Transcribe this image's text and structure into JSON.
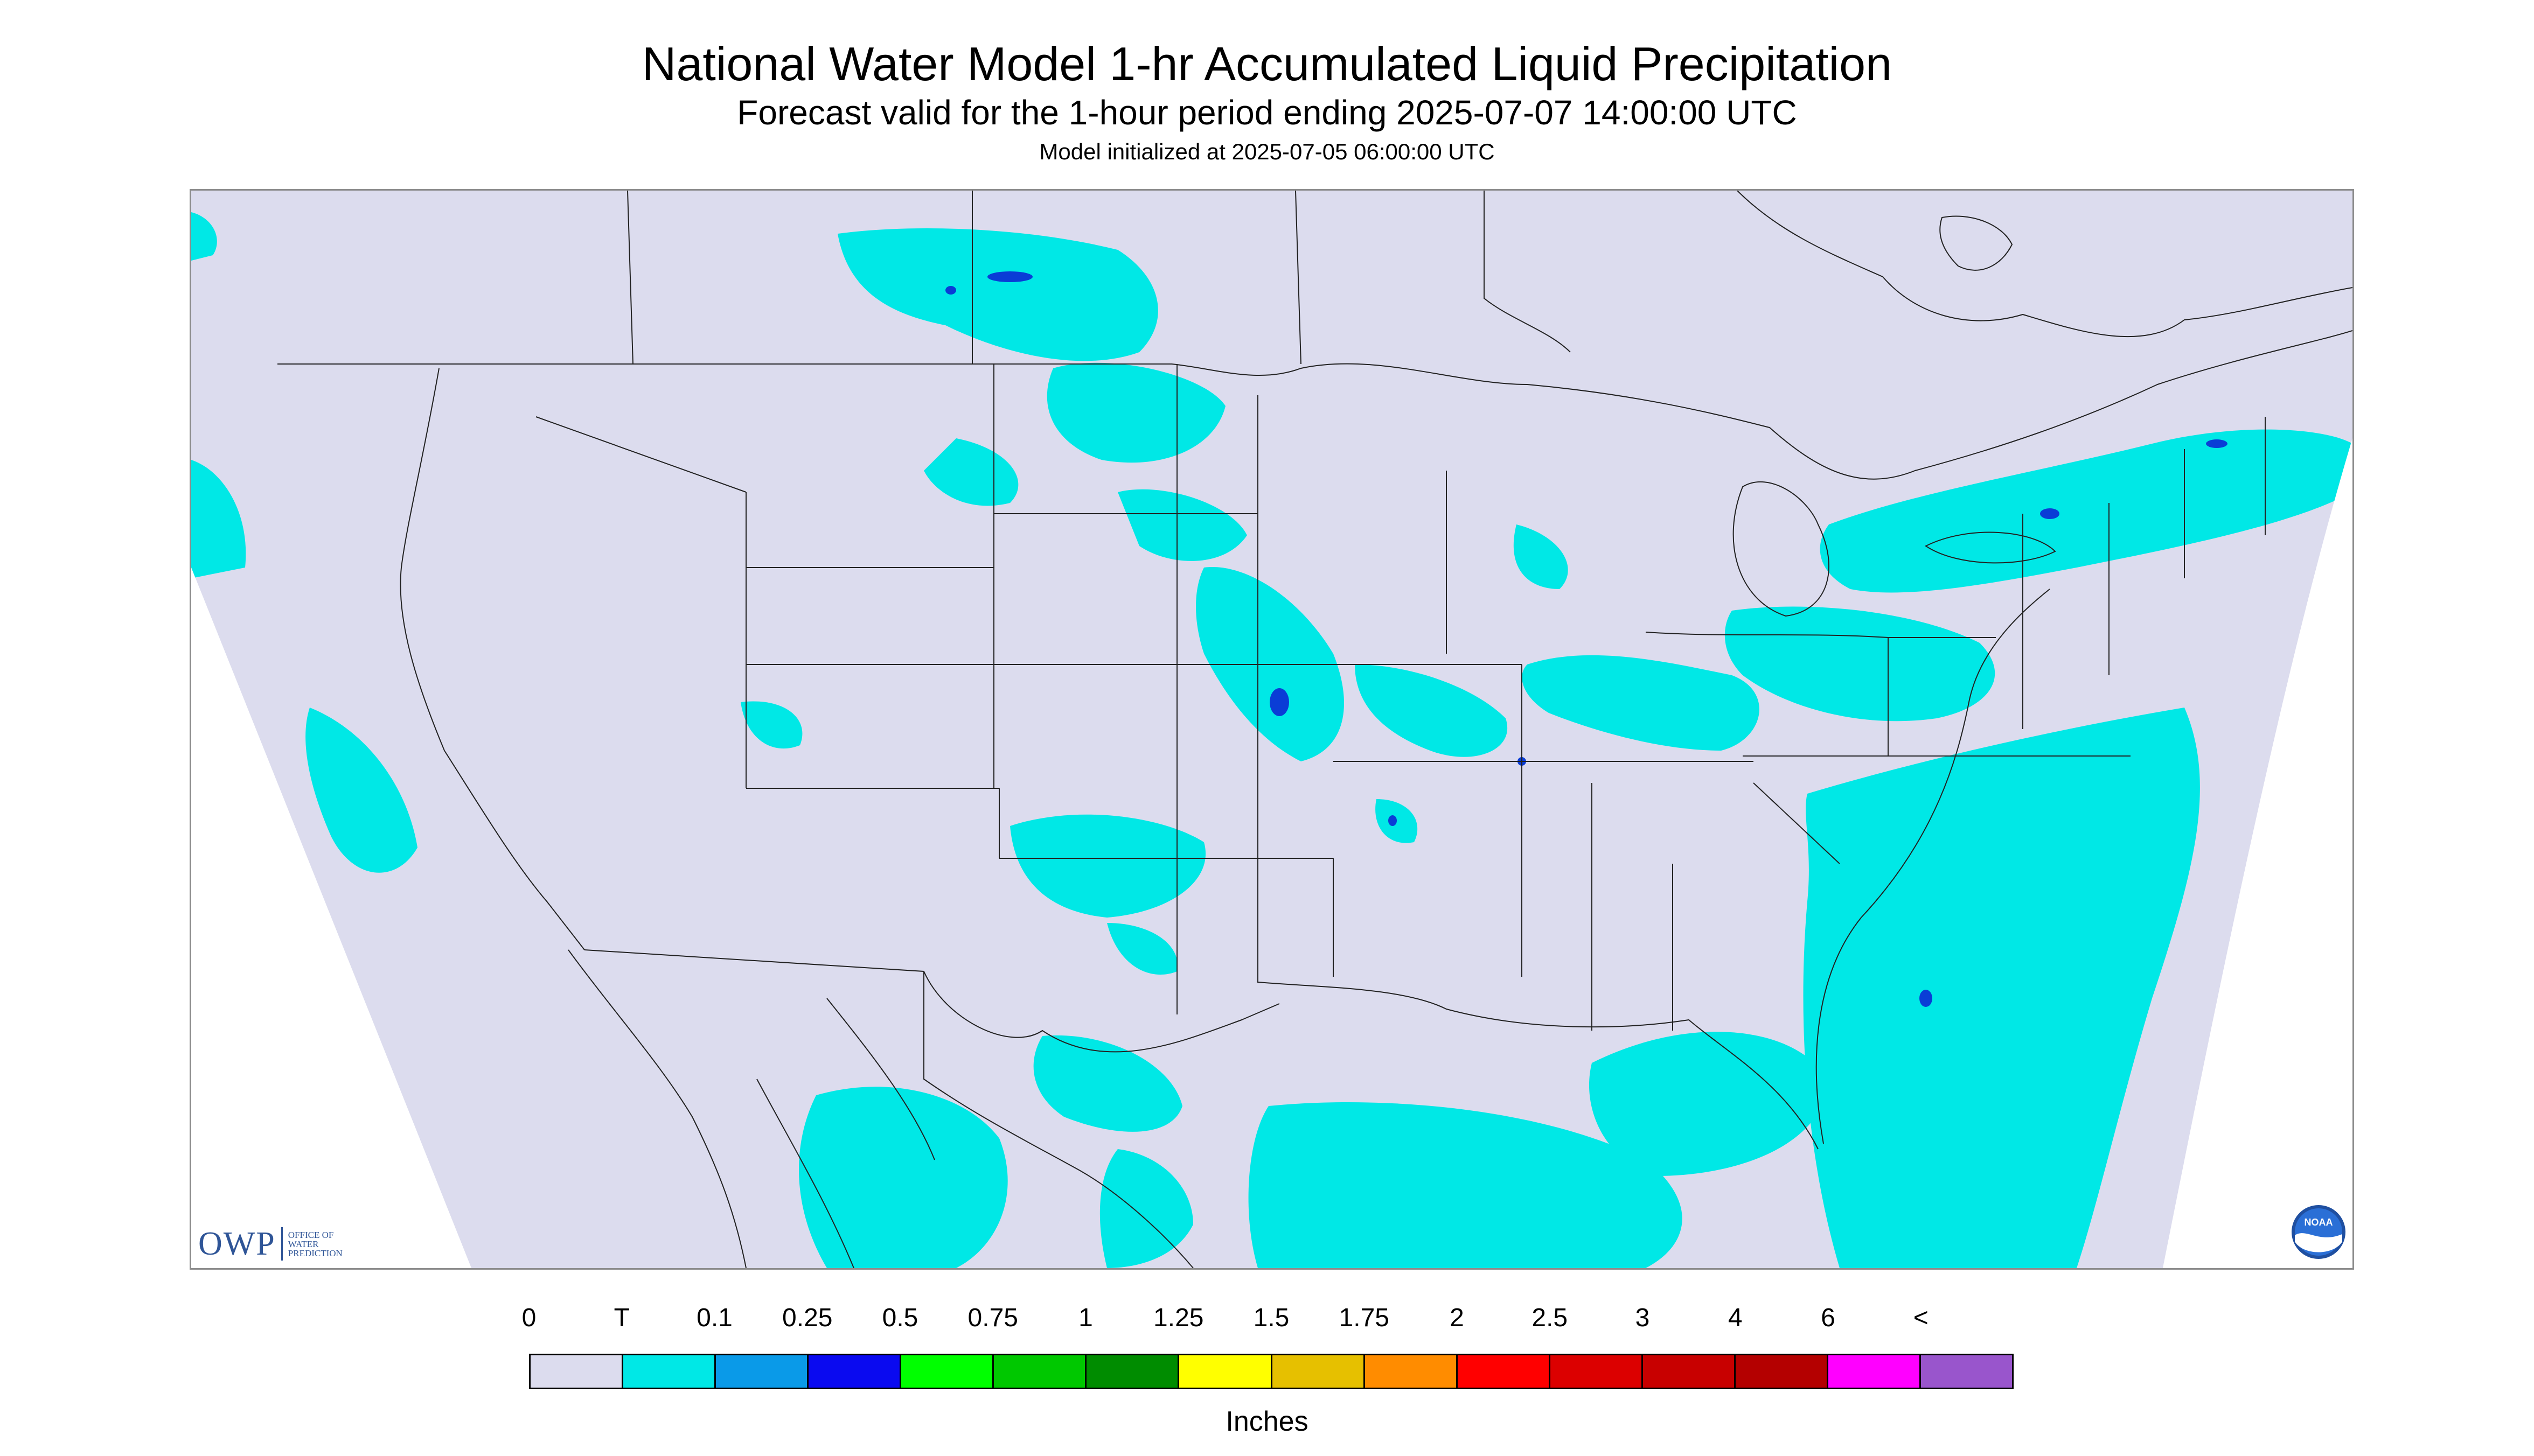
{
  "title": "National Water Model 1-hr Accumulated Liquid Precipitation",
  "subtitle": "Forecast valid for the 1-hour period ending 2025-07-07 14:00:00 UTC",
  "init_line": "Model initialized at 2025-07-05 06:00:00 UTC",
  "colors": {
    "no_precip": "#dcdcee",
    "outside_domain": "#ffffff",
    "trace": "#00e8e6",
    "heavier": "#0a3dd6",
    "boundary": "#222222"
  },
  "logos": {
    "owp_mark": "OWP",
    "owp_text": "OFFICE OF WATER PREDICTION",
    "noaa_text": "NOAA"
  },
  "legend": {
    "tick_labels": [
      "0",
      "T",
      "0.1",
      "0.25",
      "0.5",
      "0.75",
      "1",
      "1.25",
      "1.5",
      "1.75",
      "2",
      "2.5",
      "3",
      "4",
      "6",
      "<"
    ],
    "colors": [
      "#dcdcee",
      "#00e8e6",
      "#0a9ae8",
      "#0a0af0",
      "#00ff00",
      "#00c800",
      "#008c00",
      "#ffff00",
      "#e6c000",
      "#ff8c00",
      "#ff0000",
      "#dc0000",
      "#c80000",
      "#b40000",
      "#ff00ff",
      "#9955cc"
    ],
    "units": "Inches"
  }
}
